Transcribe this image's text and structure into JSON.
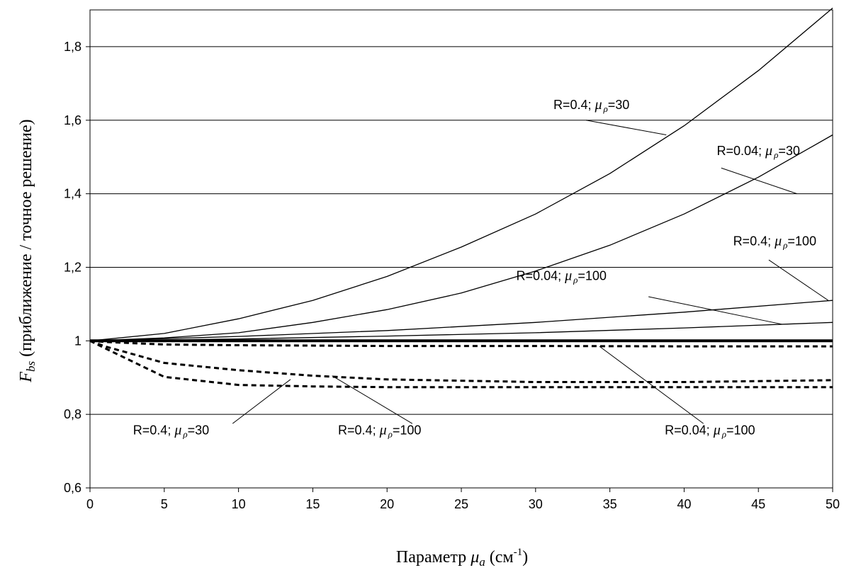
{
  "chart_data": {
    "type": "line",
    "xlabel": {
      "prefix": "Параметр ",
      "sym": "μ",
      "sub": "a",
      "mid": " (см",
      "sup": "-1",
      "suffix": ")"
    },
    "ylabel": {
      "sym": "F",
      "sub": "bs",
      "rest": " (приближение / точное решение)"
    },
    "xlim": [
      0,
      50
    ],
    "ylim": [
      0.6,
      1.9
    ],
    "xticks": [
      0,
      5,
      10,
      15,
      20,
      25,
      30,
      35,
      40,
      45,
      50
    ],
    "xtick_labels": [
      "0",
      "5",
      "10",
      "15",
      "20",
      "25",
      "30",
      "35",
      "40",
      "45",
      "50"
    ],
    "yticks": [
      0.6,
      0.8,
      1.0,
      1.2,
      1.4,
      1.6,
      1.8
    ],
    "ytick_labels": [
      "0,6",
      "0,8",
      "1",
      "1,2",
      "1,4",
      "1,6",
      "1,8"
    ],
    "grid": "horizontal",
    "series": [
      {
        "style": "solid",
        "x": [
          0,
          5,
          10,
          15,
          20,
          25,
          30,
          35,
          40,
          45,
          50
        ],
        "y": [
          1.0,
          1.02,
          1.06,
          1.11,
          1.175,
          1.255,
          1.345,
          1.455,
          1.585,
          1.735,
          1.905
        ]
      },
      {
        "style": "solid",
        "x": [
          0,
          5,
          10,
          15,
          20,
          25,
          30,
          35,
          40,
          45,
          50
        ],
        "y": [
          1.0,
          1.008,
          1.022,
          1.05,
          1.085,
          1.13,
          1.19,
          1.26,
          1.345,
          1.445,
          1.56
        ]
      },
      {
        "style": "solid",
        "x": [
          0,
          10,
          20,
          30,
          40,
          50
        ],
        "y": [
          1.0,
          1.012,
          1.028,
          1.05,
          1.078,
          1.11
        ]
      },
      {
        "style": "solid",
        "x": [
          0,
          10,
          20,
          30,
          40,
          50
        ],
        "y": [
          1.0,
          1.005,
          1.013,
          1.022,
          1.035,
          1.05
        ]
      },
      {
        "style": "bold",
        "x": [
          0,
          50
        ],
        "y": [
          1.0,
          1.0
        ]
      },
      {
        "style": "dashed",
        "x": [
          0,
          1,
          5,
          10,
          20,
          30,
          40,
          50
        ],
        "y": [
          1.0,
          0.997,
          0.99,
          0.988,
          0.986,
          0.986,
          0.985,
          0.985
        ]
      },
      {
        "style": "dashed",
        "x": [
          0,
          1,
          5,
          10,
          15,
          20,
          30,
          40,
          50
        ],
        "y": [
          1.0,
          0.985,
          0.94,
          0.92,
          0.905,
          0.895,
          0.888,
          0.888,
          0.893
        ]
      },
      {
        "style": "dashed",
        "x": [
          0,
          1,
          5,
          10,
          15,
          20,
          30,
          40,
          50
        ],
        "y": [
          1.0,
          0.98,
          0.902,
          0.88,
          0.876,
          0.874,
          0.874,
          0.874,
          0.874
        ]
      }
    ],
    "annotations": [
      {
        "text": "R=0.4; ",
        "mu": "μ",
        "sub": "ρ",
        "tail": "=30",
        "at": [
          31.2,
          1.63
        ],
        "pointer": [
          [
            33.4,
            1.6
          ],
          [
            38.8,
            1.56
          ]
        ]
      },
      {
        "text": "R=0.04; ",
        "mu": "μ",
        "sub": "ρ",
        "tail": "=30",
        "at": [
          42.2,
          1.505
        ],
        "pointer": [
          [
            42.5,
            1.47
          ],
          [
            47.6,
            1.4
          ]
        ]
      },
      {
        "text": "R=0.4; ",
        "mu": "μ",
        "sub": "ρ",
        "tail": "=100",
        "at": [
          43.3,
          1.26
        ],
        "pointer": [
          [
            45.7,
            1.22
          ],
          [
            49.7,
            1.11
          ]
        ]
      },
      {
        "text": "R=0.04; ",
        "mu": "μ",
        "sub": "ρ",
        "tail": "=100",
        "at": [
          28.7,
          1.165
        ],
        "pointer": [
          [
            37.6,
            1.12
          ],
          [
            46.6,
            1.045
          ]
        ]
      },
      {
        "text": "R=0.4; ",
        "mu": "μ",
        "sub": "ρ",
        "tail": "=30",
        "at": [
          2.9,
          0.745
        ],
        "pointer": [
          [
            9.6,
            0.775
          ],
          [
            13.5,
            0.895
          ]
        ]
      },
      {
        "text": "R=0.4; ",
        "mu": "μ",
        "sub": "ρ",
        "tail": "=100",
        "at": [
          16.7,
          0.745
        ],
        "pointer": [
          [
            21.7,
            0.775
          ],
          [
            16.3,
            0.905
          ]
        ]
      },
      {
        "text": "R=0.04; ",
        "mu": "μ",
        "sub": "ρ",
        "tail": "=100",
        "at": [
          38.7,
          0.745
        ],
        "pointer": [
          [
            41.3,
            0.775
          ],
          [
            34.3,
            0.985
          ]
        ]
      }
    ]
  }
}
